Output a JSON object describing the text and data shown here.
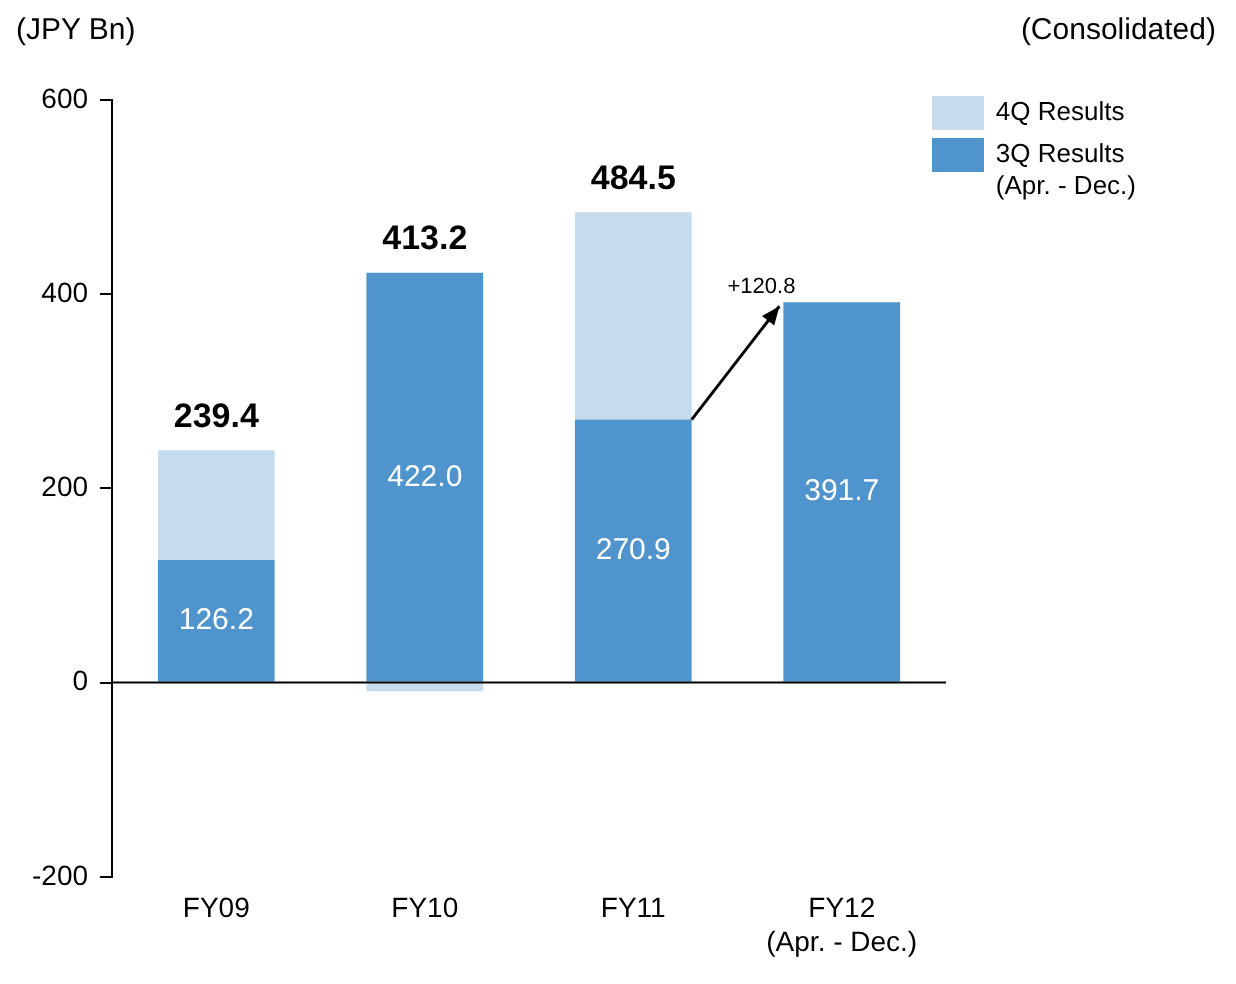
{
  "chart_data": {
    "type": "bar",
    "stacked": true,
    "ylabel": "(JPY Bn)",
    "categories": [
      "FY09",
      "FY10",
      "FY11",
      "FY12\n(Apr. - Dec.)"
    ],
    "series": [
      {
        "name": "3Q Results\n(Apr. - Dec.)",
        "color": "#4f94cd",
        "values": [
          126.2,
          422.0,
          270.9,
          391.7
        ],
        "value_labels": [
          "126.2",
          "422.0",
          "270.9",
          "391.7"
        ]
      },
      {
        "name": "4Q Results",
        "color": "#c6dbec",
        "values": [
          113.2,
          -8.8,
          213.6,
          null
        ]
      }
    ],
    "totals": [
      "239.4",
      "413.2",
      "484.5",
      null
    ],
    "ylim": [
      -200,
      600
    ],
    "yticks": [
      -200,
      0,
      200,
      400,
      600
    ],
    "ref_lines": [
      {
        "axis": "y",
        "value": 0
      }
    ],
    "grid": false,
    "legend": "top right",
    "annotations": [
      "(Consolidated)",
      {
        "text": "+120.8",
        "x": "FY12\n(Apr. - Dec.)",
        "y": 391.7
      }
    ]
  }
}
